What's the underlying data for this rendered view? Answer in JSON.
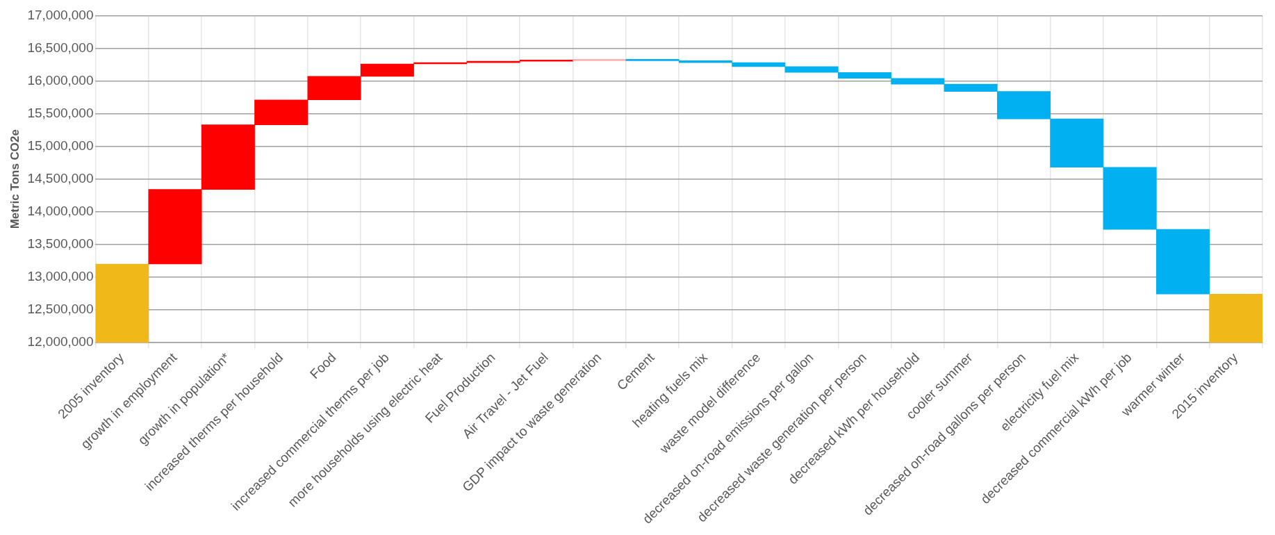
{
  "chart_data": {
    "type": "bar",
    "ylabel": "Metric Tons CO2e",
    "categories": [
      "2005 inventory",
      "growth in employment",
      "growth in population*",
      "increased therms per household",
      "Food",
      "increased commercial therms per job",
      "more households using electric heat",
      "Fuel Production",
      "Air Travel - Jet Fuel",
      "GDP impact to waste generation",
      "Cement",
      "heating fuels mix",
      "waste model difference",
      "decreased on-road emissions per gallon",
      "decreased waste generation per person",
      "decreased kWh per household",
      "cooler summer",
      "decreased on-road gallons per person",
      "electricity fuel mix",
      "decreased commercial kWh per job",
      "warmer winter",
      "2015 inventory"
    ],
    "values": [
      13200000,
      1140000,
      990000,
      380000,
      360000,
      190000,
      20000,
      20000,
      10000,
      10000,
      -10000,
      -30000,
      -60000,
      -90000,
      -90000,
      -90000,
      -110000,
      -420000,
      -740000,
      -950000,
      -990000,
      12740000
    ],
    "base": [
      null,
      13200000,
      14340000,
      15330000,
      15710000,
      16070000,
      16260000,
      16280000,
      16300000,
      16310000,
      16320000,
      16310000,
      16280000,
      16220000,
      16130000,
      16040000,
      15950000,
      15840000,
      15420000,
      14680000,
      13730000,
      null
    ],
    "colors": [
      "#f0b818",
      "#ff0000",
      "#ff0000",
      "#ff0000",
      "#ff0000",
      "#ff0000",
      "#ff0000",
      "#ff0000",
      "#ff0000",
      "#ffb0b0",
      "#00b0f0",
      "#00b0f0",
      "#00b0f0",
      "#00b0f0",
      "#00b0f0",
      "#00b0f0",
      "#00b0f0",
      "#00b0f0",
      "#00b0f0",
      "#00b0f0",
      "#00b0f0",
      "#f0b818"
    ],
    "ylim": [
      12000000,
      17000000
    ],
    "yticks": [
      {
        "value": 12000000,
        "label": "12,000,000"
      },
      {
        "value": 12500000,
        "label": "12,500,000"
      },
      {
        "value": 13000000,
        "label": "13,000,000"
      },
      {
        "value": 13500000,
        "label": "13,500,000"
      },
      {
        "value": 14000000,
        "label": "14,000,000"
      },
      {
        "value": 14500000,
        "label": "14,500,000"
      },
      {
        "value": 15000000,
        "label": "15,000,000"
      },
      {
        "value": 15500000,
        "label": "15,500,000"
      },
      {
        "value": 16000000,
        "label": "16,000,000"
      },
      {
        "value": 16500000,
        "label": "16,500,000"
      },
      {
        "value": 17000000,
        "label": "17,000,000"
      }
    ],
    "grid": true,
    "legend": false
  }
}
